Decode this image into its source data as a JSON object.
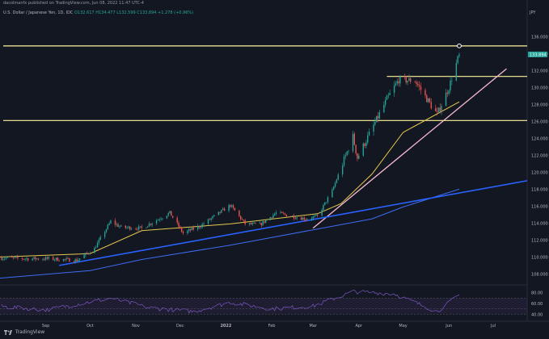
{
  "header": {
    "publisher": "dacolmanfx published on TradingView.com, Jun 08, 2022 11:47 UTC-4",
    "symbol": "U.S. Dollar / Japanese Yen, 1D, IDC",
    "ohlc": "O132.617 H134.477 L132.599 C133.894 +1.278 (+0.96%)",
    "currency": "JPY"
  },
  "brand": "TradingView",
  "colors": {
    "background": "#131722",
    "up_candle": "#26a69a",
    "down_candle": "#ef5350",
    "support_resistance_line": "#fff59d",
    "trendline_pink": "#f8bbd0",
    "trendline_blue": "#2962ff",
    "sma_short": "#e6c84c",
    "sma_long": "#3d6cf0",
    "rsi_line": "#7e57c2",
    "price_label": "#26a69a"
  },
  "chart_data": {
    "type": "candlestick",
    "y_axis": {
      "ticks": [
        108,
        110,
        112,
        114,
        116,
        118,
        120,
        122,
        124,
        126,
        128,
        130,
        132,
        134,
        136
      ],
      "tick_labels": [
        "108.000",
        "110.000",
        "112.000",
        "114.000",
        "116.000",
        "118.000",
        "120.000",
        "122.000",
        "124.000",
        "126.000",
        "128.000",
        "130.000",
        "132.000",
        "134.000",
        "136.000"
      ],
      "range": [
        106.8,
        138.6
      ]
    },
    "x_axis": {
      "labels": [
        "Sep",
        "Oct",
        "Nov",
        "Dec",
        "2022",
        "Feb",
        "Mar",
        "Apr",
        "May",
        "Jun",
        "Jul"
      ],
      "label_dates": [
        "2021-09-01",
        "2021-10-01",
        "2021-11-01",
        "2021-12-01",
        "2022-01-01",
        "2022-02-01",
        "2022-03-01",
        "2022-04-01",
        "2022-05-01",
        "2022-06-01",
        "2022-07-01"
      ],
      "range": [
        "2021-08-01",
        "2022-07-24"
      ]
    },
    "last_price": {
      "value": 133.894,
      "label": "133.894"
    },
    "horizontal_levels": [
      134.9,
      131.3,
      126.1
    ],
    "anchor_points": [
      [
        "2021-08-01",
        109.9
      ],
      [
        "2021-08-20",
        109.8
      ],
      [
        "2021-09-03",
        109.8
      ],
      [
        "2021-09-22",
        109.6
      ],
      [
        "2021-10-04",
        111.0
      ],
      [
        "2021-10-15",
        114.2
      ],
      [
        "2021-10-22",
        113.5
      ],
      [
        "2021-11-05",
        113.4
      ],
      [
        "2021-11-24",
        115.2
      ],
      [
        "2021-12-03",
        112.8
      ],
      [
        "2021-12-15",
        113.7
      ],
      [
        "2022-01-04",
        116.1
      ],
      [
        "2022-01-14",
        113.9
      ],
      [
        "2022-01-24",
        113.8
      ],
      [
        "2022-02-04",
        115.2
      ],
      [
        "2022-02-24",
        114.5
      ],
      [
        "2022-03-04",
        114.8
      ],
      [
        "2022-03-14",
        117.8
      ],
      [
        "2022-03-28",
        124.2
      ],
      [
        "2022-03-31",
        121.7
      ],
      [
        "2022-04-20",
        128.6
      ],
      [
        "2022-04-28",
        130.9
      ],
      [
        "2022-05-09",
        130.8
      ],
      [
        "2022-05-24",
        126.8
      ],
      [
        "2022-06-01",
        130.0
      ],
      [
        "2022-06-08",
        133.9
      ]
    ],
    "sma_short_points": [
      [
        "2021-08-01",
        110.0
      ],
      [
        "2021-10-01",
        110.4
      ],
      [
        "2021-11-05",
        113.1
      ],
      [
        "2022-01-04",
        113.9
      ],
      [
        "2022-03-04",
        115.1
      ],
      [
        "2022-03-20",
        116.3
      ],
      [
        "2022-04-10",
        119.8
      ],
      [
        "2022-05-01",
        124.7
      ],
      [
        "2022-06-08",
        128.3
      ]
    ],
    "sma_long_points": [
      [
        "2021-08-01",
        107.5
      ],
      [
        "2021-10-01",
        108.4
      ],
      [
        "2021-11-05",
        109.7
      ],
      [
        "2022-01-04",
        111.4
      ],
      [
        "2022-03-04",
        113.3
      ],
      [
        "2022-04-10",
        114.5
      ],
      [
        "2022-05-01",
        115.9
      ],
      [
        "2022-06-08",
        118.0
      ]
    ],
    "trendlines": [
      {
        "name": "pink",
        "from": [
          "2022-03-01",
          113.4
        ],
        "to": [
          "2022-07-10",
          132.2
        ]
      },
      {
        "name": "blue",
        "from": [
          "2021-09-10",
          109.0
        ],
        "to": [
          "2022-07-24",
          119.0
        ]
      }
    ],
    "rsi": {
      "ticks": [
        40,
        60,
        80
      ],
      "tick_labels": [
        "40.00",
        "60.00",
        "80.00"
      ],
      "range": [
        30,
        90
      ],
      "points": [
        [
          "2021-08-01",
          55
        ],
        [
          "2021-09-01",
          48
        ],
        [
          "2021-10-15",
          70
        ],
        [
          "2021-11-10",
          52
        ],
        [
          "2021-12-10",
          45
        ],
        [
          "2022-01-04",
          62
        ],
        [
          "2022-02-01",
          50
        ],
        [
          "2022-03-01",
          55
        ],
        [
          "2022-03-28",
          82
        ],
        [
          "2022-04-25",
          78
        ],
        [
          "2022-05-24",
          45
        ],
        [
          "2022-06-08",
          76
        ]
      ]
    }
  }
}
